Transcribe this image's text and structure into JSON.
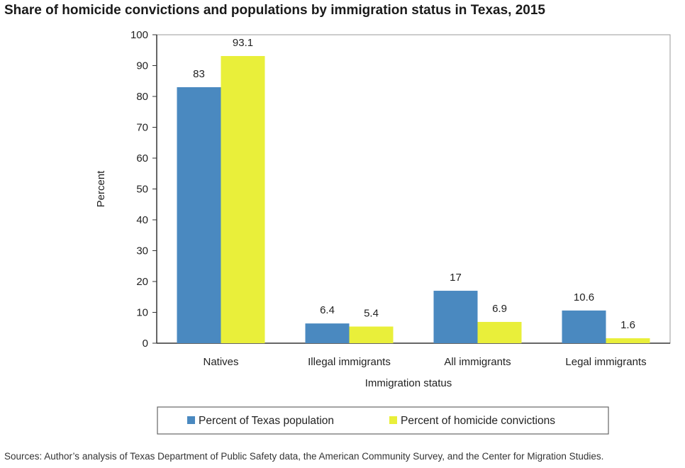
{
  "title": "Share of homicide convictions and populations by immigration status in Texas, 2015",
  "source": "Sources: Author’s analysis of Texas Department of Public Safety data, the American Community Survey, and the Center for Migration Studies.",
  "chart_data": {
    "type": "bar",
    "title": "Share of homicide convictions and populations by immigration status in Texas, 2015",
    "xlabel": "Immigration status",
    "ylabel": "Percent",
    "ylim": [
      0,
      100
    ],
    "yticks": [
      0,
      10,
      20,
      30,
      40,
      50,
      60,
      70,
      80,
      90,
      100
    ],
    "grid": true,
    "legend_position": "bottom",
    "categories": [
      "Natives",
      "Illegal immigrants",
      "All immigrants",
      "Legal immigrants"
    ],
    "series": [
      {
        "name": "Percent of Texas population",
        "color": "#4a89c0",
        "values": [
          83,
          6.4,
          17,
          10.6
        ],
        "labels": [
          "83",
          "6.4",
          "17",
          "10.6"
        ]
      },
      {
        "name": "Percent of homicide convictions",
        "color": "#e9ef3a",
        "values": [
          93.1,
          5.4,
          6.9,
          1.6
        ],
        "labels": [
          "93.1",
          "5.4",
          "6.9",
          "1.6"
        ]
      }
    ]
  }
}
